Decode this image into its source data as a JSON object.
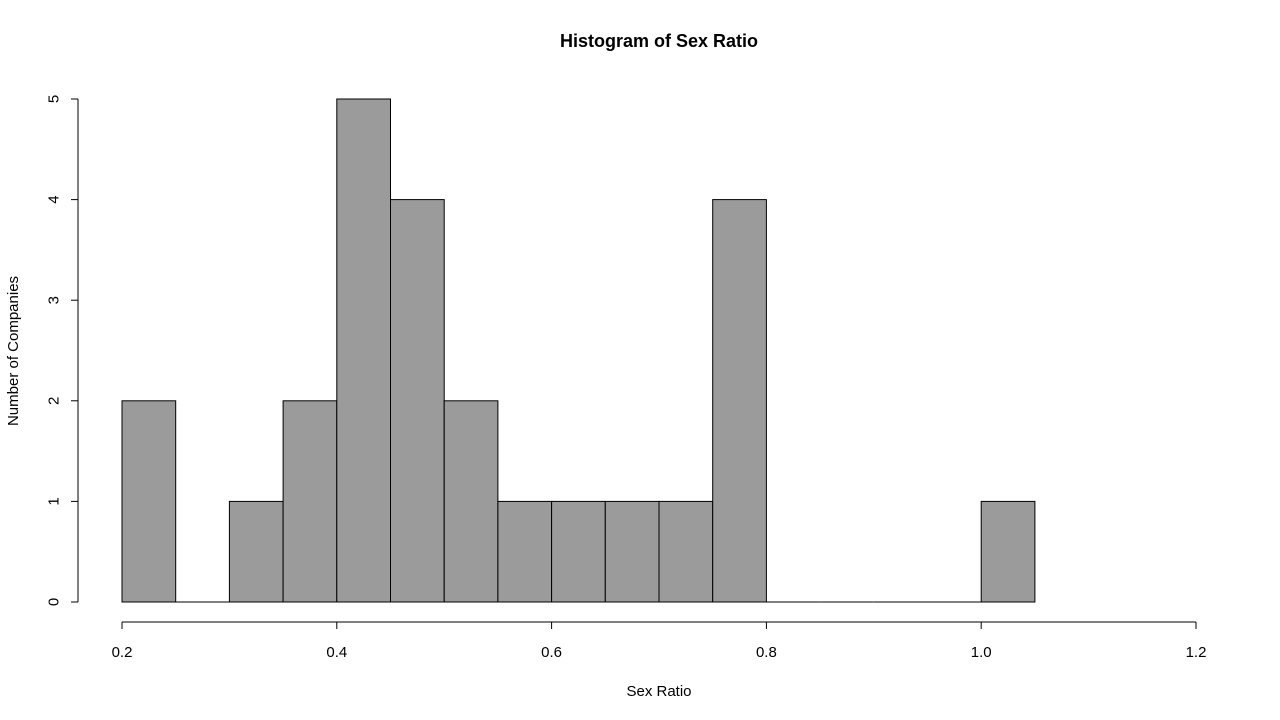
{
  "chart_data": {
    "type": "bar",
    "title": "Histogram of Sex Ratio",
    "xlabel": "Sex Ratio",
    "ylabel": "Number of Companies",
    "bin_width": 0.05,
    "bins": [
      {
        "x0": 0.2,
        "x1": 0.25,
        "count": 2
      },
      {
        "x0": 0.25,
        "x1": 0.3,
        "count": 0
      },
      {
        "x0": 0.3,
        "x1": 0.35,
        "count": 1
      },
      {
        "x0": 0.35,
        "x1": 0.4,
        "count": 2
      },
      {
        "x0": 0.4,
        "x1": 0.45,
        "count": 5
      },
      {
        "x0": 0.45,
        "x1": 0.5,
        "count": 4
      },
      {
        "x0": 0.5,
        "x1": 0.55,
        "count": 2
      },
      {
        "x0": 0.55,
        "x1": 0.6,
        "count": 1
      },
      {
        "x0": 0.6,
        "x1": 0.65,
        "count": 1
      },
      {
        "x0": 0.65,
        "x1": 0.7,
        "count": 1
      },
      {
        "x0": 0.7,
        "x1": 0.75,
        "count": 1
      },
      {
        "x0": 0.75,
        "x1": 0.8,
        "count": 4
      },
      {
        "x0": 0.8,
        "x1": 0.85,
        "count": 0
      },
      {
        "x0": 0.85,
        "x1": 0.9,
        "count": 0
      },
      {
        "x0": 0.9,
        "x1": 0.95,
        "count": 0
      },
      {
        "x0": 0.95,
        "x1": 1.0,
        "count": 0
      },
      {
        "x0": 1.0,
        "x1": 1.05,
        "count": 1
      }
    ],
    "xlim": [
      0.2,
      1.2
    ],
    "ylim": [
      0,
      5
    ],
    "x_ticks": [
      0.2,
      0.4,
      0.6,
      0.8,
      1.0,
      1.2
    ],
    "x_tick_labels": [
      "0.2",
      "0.4",
      "0.6",
      "0.8",
      "1.0",
      "1.2"
    ],
    "y_ticks": [
      0,
      1,
      2,
      3,
      4,
      5
    ],
    "y_tick_labels": [
      "0",
      "1",
      "2",
      "3",
      "4",
      "5"
    ],
    "grid": false,
    "colors": {
      "bar_fill": "#9b9b9b",
      "bar_stroke": "#000000",
      "background": "#ffffff"
    }
  }
}
